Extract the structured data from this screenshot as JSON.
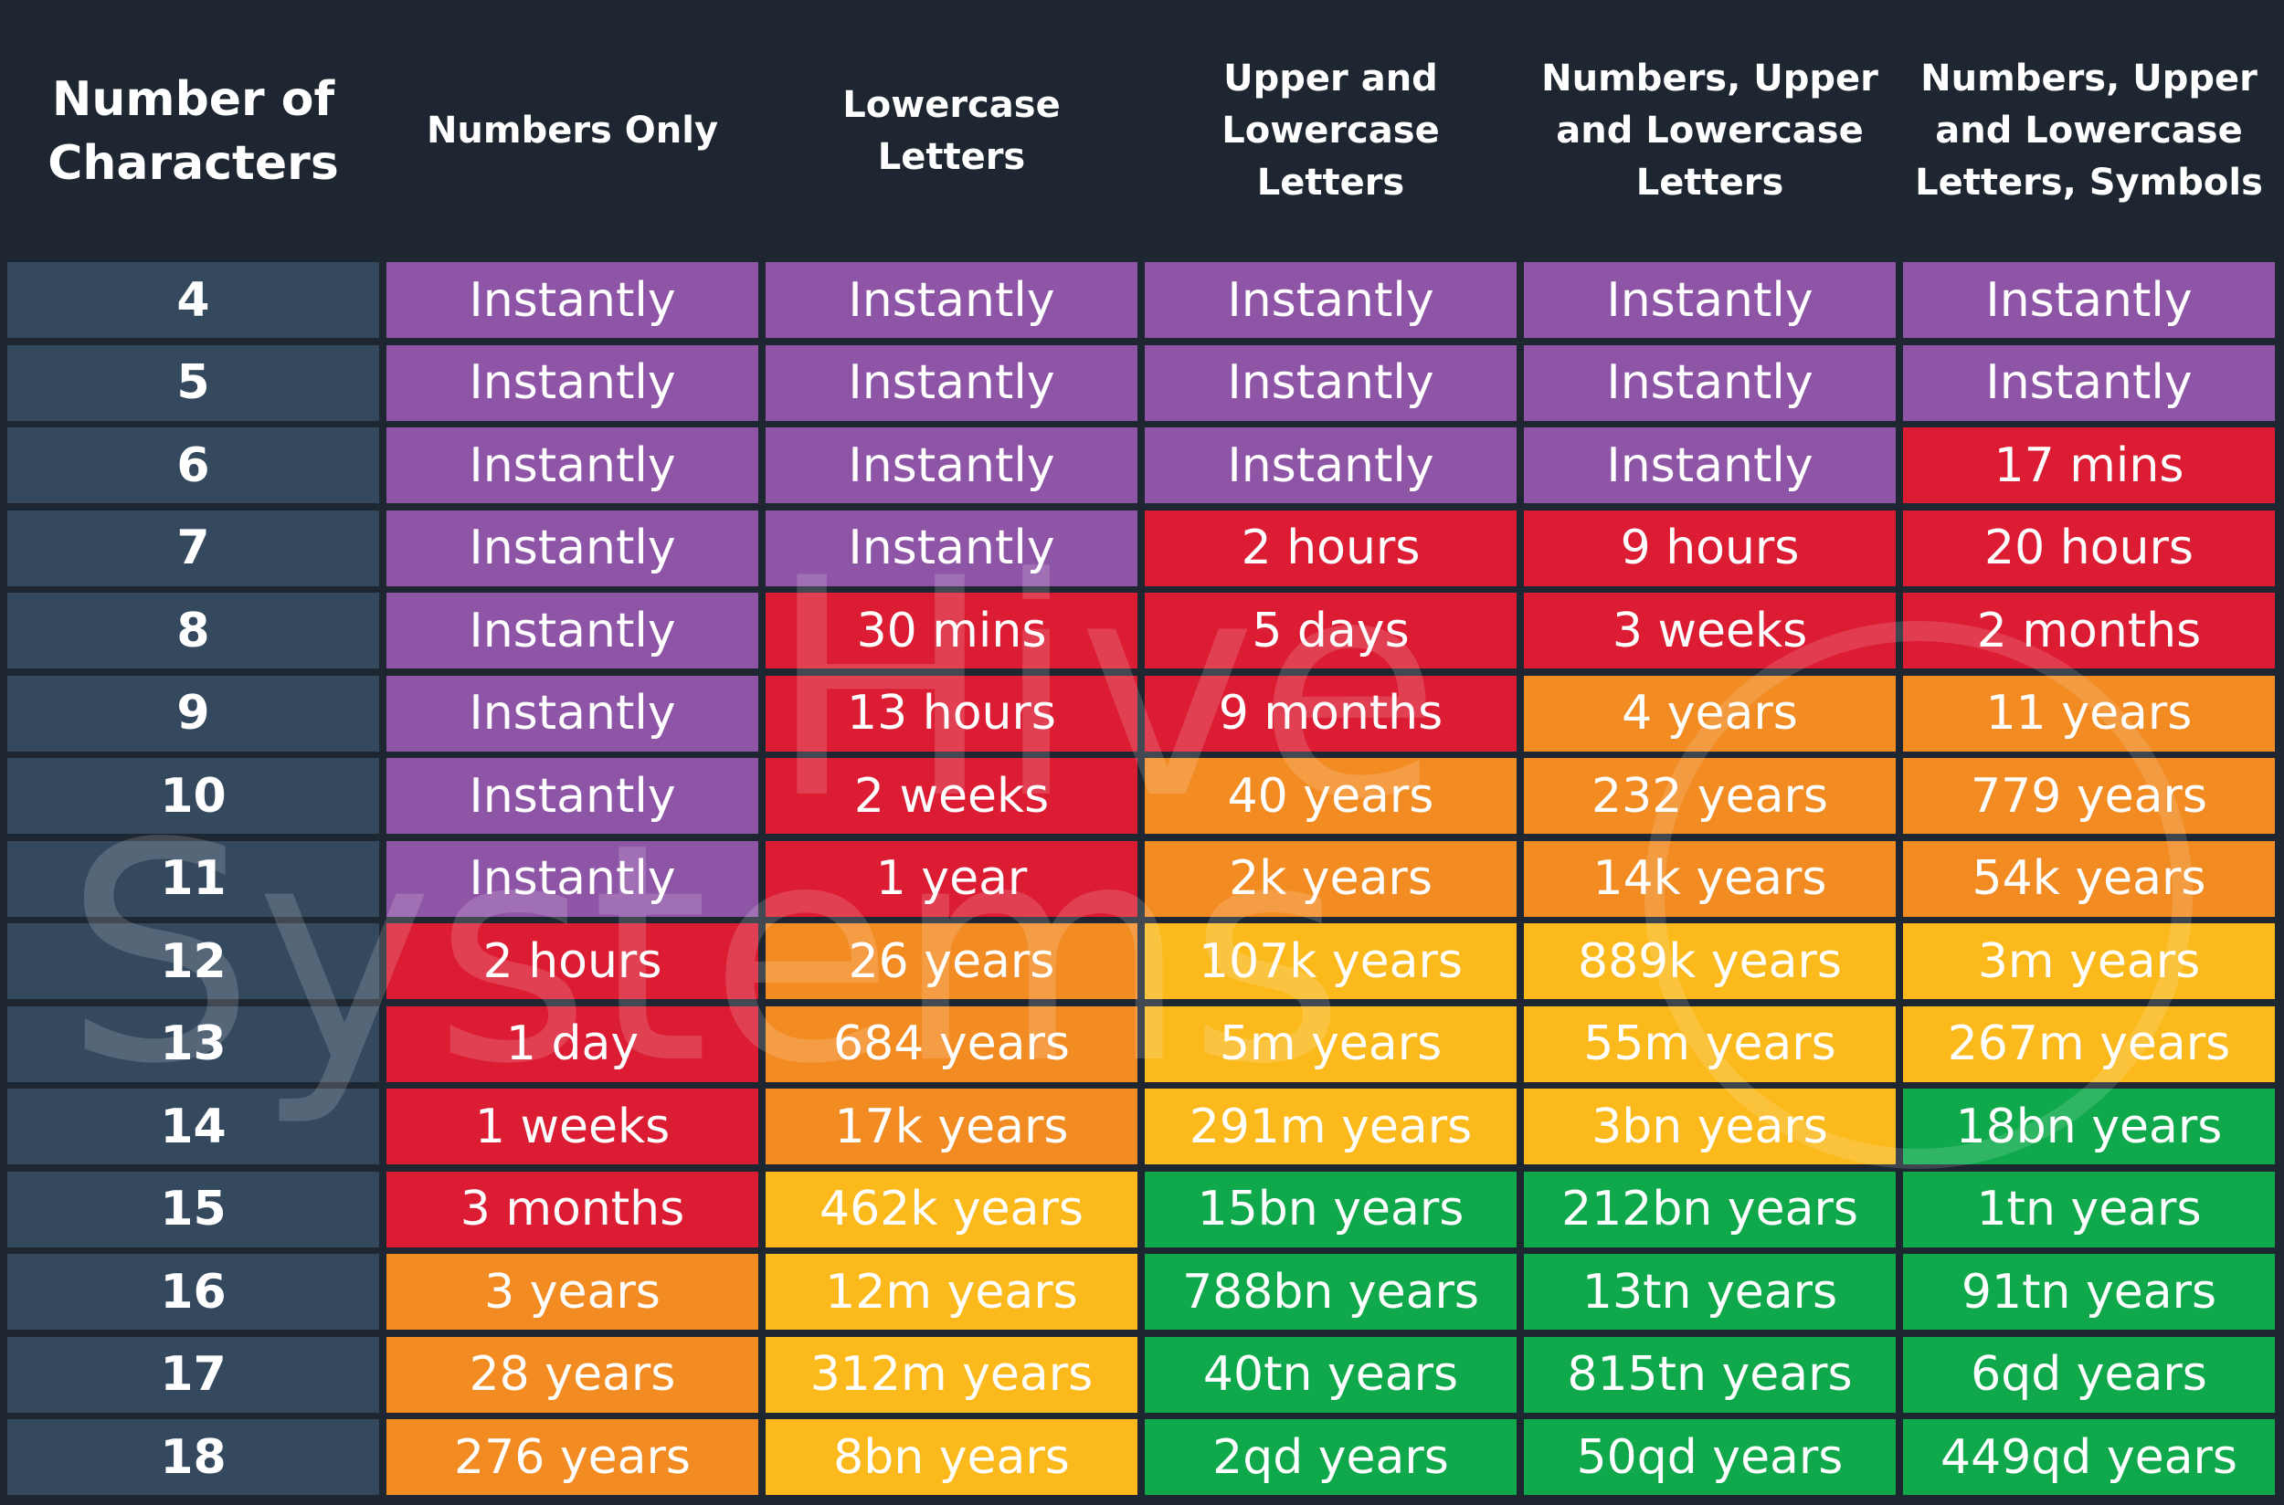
{
  "table": {
    "header": [
      "Number of\nCharacters",
      "Numbers Only",
      "Lowercase\nLetters",
      "Upper and\nLowercase\nLetters",
      "Numbers, Upper\nand Lowercase\nLetters",
      "Numbers, Upper\nand Lowercase\nLetters, Symbols"
    ],
    "rows": [
      [
        "4",
        "Instantly",
        "Instantly",
        "Instantly",
        "Instantly",
        "Instantly"
      ],
      [
        "5",
        "Instantly",
        "Instantly",
        "Instantly",
        "Instantly",
        "Instantly"
      ],
      [
        "6",
        "Instantly",
        "Instantly",
        "Instantly",
        "Instantly",
        "17 mins"
      ],
      [
        "7",
        "Instantly",
        "Instantly",
        "2 hours",
        "9 hours",
        "20 hours"
      ],
      [
        "8",
        "Instantly",
        "30 mins",
        "5 days",
        "3 weeks",
        "2 months"
      ],
      [
        "9",
        "Instantly",
        "13 hours",
        "9 months",
        "4 years",
        "11 years"
      ],
      [
        "10",
        "Instantly",
        "2 weeks",
        "40 years",
        "232 years",
        "779 years"
      ],
      [
        "11",
        "Instantly",
        "1 year",
        "2k years",
        "14k years",
        "54k years"
      ],
      [
        "12",
        "2 hours",
        "26 years",
        "107k years",
        "889k years",
        "3m years"
      ],
      [
        "13",
        "1 day",
        "684 years",
        "5m years",
        "55m years",
        "267m years"
      ],
      [
        "14",
        "1 weeks",
        "17k years",
        "291m years",
        "3bn years",
        "18bn years"
      ],
      [
        "15",
        "3 months",
        "462k years",
        "15bn years",
        "212bn years",
        "1tn years"
      ],
      [
        "16",
        "3 years",
        "12m years",
        "788bn years",
        "13tn years",
        "91tn years"
      ],
      [
        "17",
        "28 years",
        "312m years",
        "40tn years",
        "815tn years",
        "6qd years"
      ],
      [
        "18",
        "276 years",
        "8bn years",
        "2qd years",
        "50qd years",
        "449qd years"
      ]
    ],
    "cell_colors": [
      [
        "#8e54a6",
        "#8e54a6",
        "#8e54a6",
        "#8e54a6",
        "#8e54a6"
      ],
      [
        "#8e54a6",
        "#8e54a6",
        "#8e54a6",
        "#8e54a6",
        "#8e54a6"
      ],
      [
        "#8e54a6",
        "#8e54a6",
        "#8e54a6",
        "#8e54a6",
        "#dc1c33"
      ],
      [
        "#8e54a6",
        "#8e54a6",
        "#dc1c33",
        "#dc1c33",
        "#dc1c33"
      ],
      [
        "#8e54a6",
        "#dc1c33",
        "#dc1c33",
        "#dc1c33",
        "#dc1c33"
      ],
      [
        "#8e54a6",
        "#dc1c33",
        "#dc1c33",
        "#f28b22",
        "#f28b22"
      ],
      [
        "#8e54a6",
        "#dc1c33",
        "#f28b22",
        "#f28b22",
        "#f28b22"
      ],
      [
        "#8e54a6",
        "#dc1c33",
        "#f28b22",
        "#f28b22",
        "#f28b22"
      ],
      [
        "#dc1c33",
        "#f28b22",
        "#fbb91c",
        "#fbb91c",
        "#fbb91c"
      ],
      [
        "#dc1c33",
        "#f28b22",
        "#fbb91c",
        "#fbb91c",
        "#fbb91c"
      ],
      [
        "#dc1c33",
        "#f28b22",
        "#fbb91c",
        "#fbb91c",
        "#0fa94c"
      ],
      [
        "#dc1c33",
        "#fbb91c",
        "#0fa94c",
        "#0fa94c",
        "#0fa94c"
      ],
      [
        "#f28b22",
        "#fbb91c",
        "#0fa94c",
        "#0fa94c",
        "#0fa94c"
      ],
      [
        "#f28b22",
        "#fbb91c",
        "#0fa94c",
        "#0fa94c",
        "#0fa94c"
      ],
      [
        "#f28b22",
        "#fbb91c",
        "#0fa94c",
        "#0fa94c",
        "#0fa94c"
      ]
    ]
  },
  "watermark": [
    "Hive",
    "Systems"
  ]
}
